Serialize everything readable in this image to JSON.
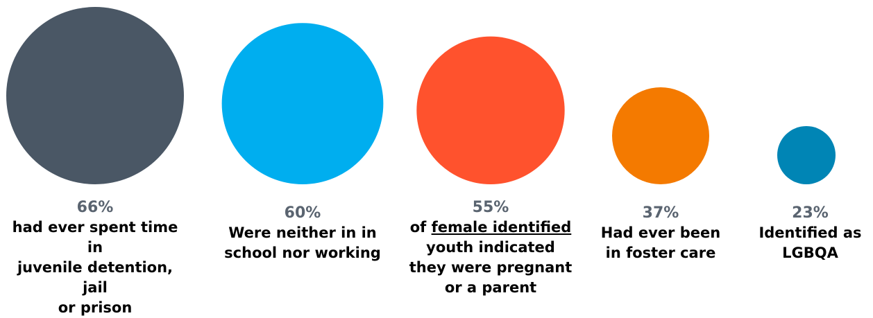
{
  "chart_data": {
    "type": "bubble",
    "title": "",
    "items": [
      {
        "value": 66,
        "label": "66%",
        "description_lines": [
          "had ever spent time in",
          "juvenile detention, jail",
          "or prison"
        ],
        "color": "#4a5765"
      },
      {
        "value": 60,
        "label": "60%",
        "description_lines": [
          "Were neither in in",
          "school nor working"
        ],
        "color": "#00aeef"
      },
      {
        "value": 55,
        "label": "55%",
        "description_prefix": "of ",
        "description_underlined": "female identified",
        "description_lines": [
          "youth indicated",
          "they were pregnant",
          "or a parent"
        ],
        "color": "#ff522d"
      },
      {
        "value": 37,
        "label": "37%",
        "description_lines": [
          "Had ever been",
          "in foster care"
        ],
        "color": "#f47a00"
      },
      {
        "value": 23,
        "label": "23%",
        "description_lines": [
          "Identified as",
          "LGBQA"
        ],
        "color": "#0085b5"
      }
    ]
  }
}
